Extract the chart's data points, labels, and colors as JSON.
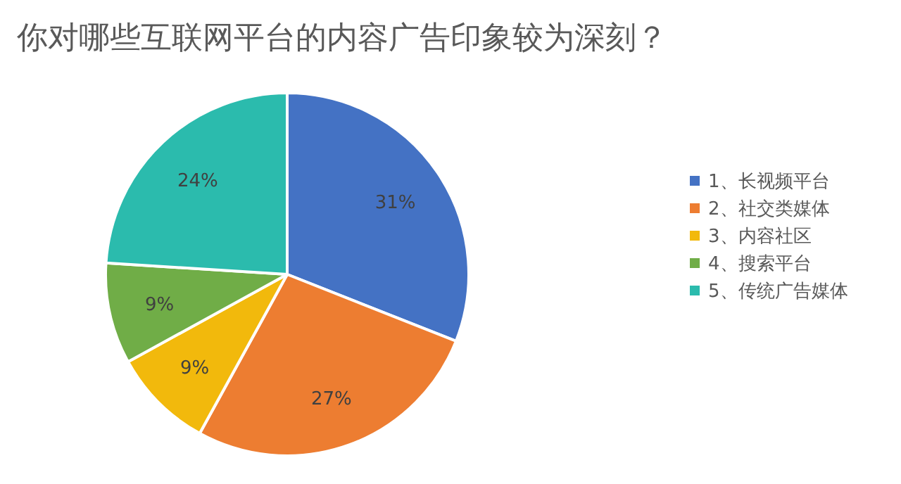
{
  "chart_data": {
    "type": "pie",
    "title": "你对哪些互联网平台的内容广告印象较为深刻？",
    "categories": [
      "1、长视频平台",
      "2、社交类媒体",
      "3、内容社区",
      "4、搜索平台",
      "5、传统广告媒体"
    ],
    "values": [
      31,
      27,
      9,
      9,
      24
    ],
    "value_labels": [
      "31%",
      "27%",
      "9%",
      "9%",
      "24%"
    ],
    "colors": [
      "#4472c4",
      "#ed7d31",
      "#f2b90c",
      "#70ad47",
      "#2bbbad"
    ],
    "legend": "right"
  }
}
